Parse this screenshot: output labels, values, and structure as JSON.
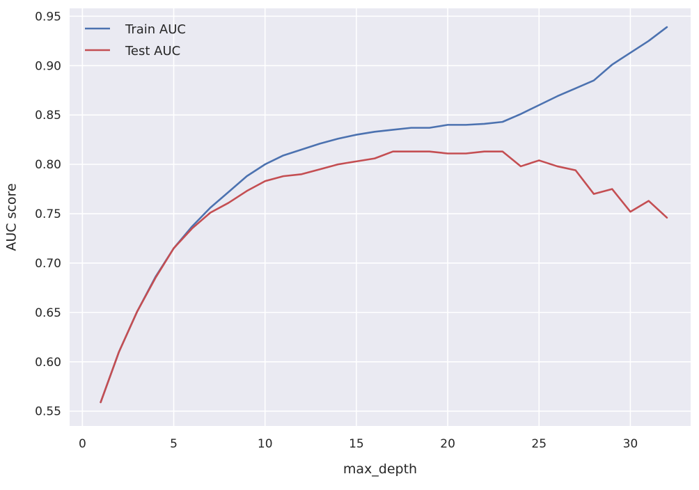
{
  "chart_data": {
    "type": "line",
    "xlabel": "max_depth",
    "ylabel": "AUC score",
    "xlim": [
      -0.7,
      33.3
    ],
    "ylim": [
      0.535,
      0.958
    ],
    "x_ticks": [
      0,
      5,
      10,
      15,
      20,
      25,
      30
    ],
    "y_ticks": [
      0.55,
      0.6,
      0.65,
      0.7,
      0.75,
      0.8,
      0.85,
      0.9,
      0.95
    ],
    "grid": true,
    "legend_position": "upper-left",
    "background_color": "#eaeaf2",
    "grid_color": "#ffffff",
    "x": [
      1,
      2,
      3,
      4,
      5,
      6,
      7,
      8,
      9,
      10,
      11,
      12,
      13,
      14,
      15,
      16,
      17,
      18,
      19,
      20,
      21,
      22,
      23,
      24,
      25,
      26,
      27,
      28,
      29,
      30,
      31,
      32
    ],
    "series": [
      {
        "name": "Train AUC",
        "color": "#4c72b0",
        "values": [
          0.559,
          0.61,
          0.651,
          0.686,
          0.715,
          0.737,
          0.756,
          0.772,
          0.788,
          0.8,
          0.809,
          0.815,
          0.821,
          0.826,
          0.83,
          0.833,
          0.835,
          0.837,
          0.837,
          0.84,
          0.84,
          0.841,
          0.843,
          0.851,
          0.86,
          0.869,
          0.877,
          0.885,
          0.901,
          0.913,
          0.925,
          0.939
        ]
      },
      {
        "name": "Test AUC",
        "color": "#c44e52",
        "values": [
          0.559,
          0.61,
          0.651,
          0.685,
          0.715,
          0.735,
          0.751,
          0.761,
          0.773,
          0.783,
          0.788,
          0.79,
          0.795,
          0.8,
          0.803,
          0.806,
          0.813,
          0.813,
          0.813,
          0.811,
          0.811,
          0.813,
          0.813,
          0.798,
          0.804,
          0.798,
          0.794,
          0.77,
          0.775,
          0.752,
          0.763,
          0.746
        ]
      }
    ]
  }
}
